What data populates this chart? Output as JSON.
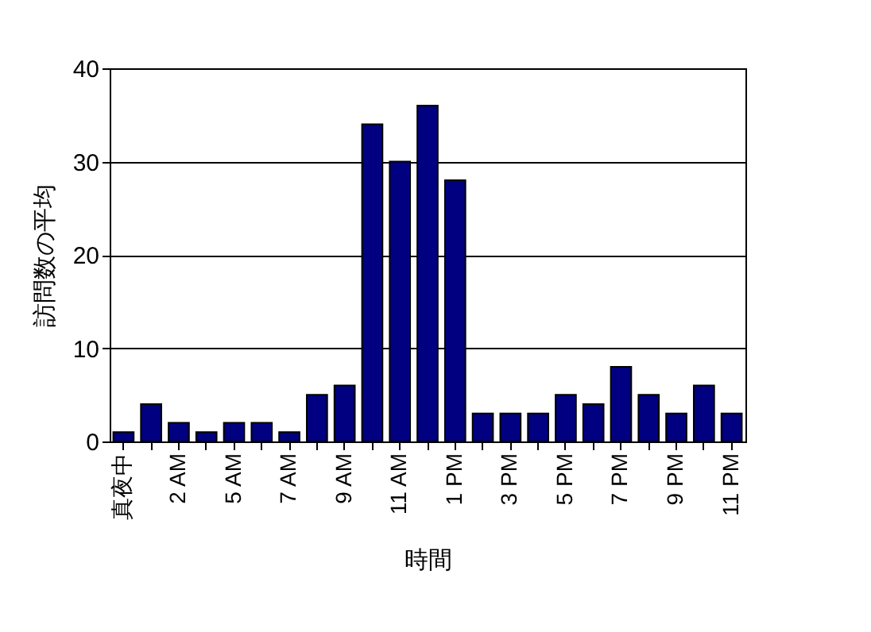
{
  "chart_data": {
    "type": "bar",
    "xlabel": "時間",
    "ylabel": "訪問数の平均",
    "categories": [
      "真夜中",
      null,
      "2 AM",
      null,
      "5 AM",
      null,
      "7 AM",
      null,
      "9 AM",
      null,
      "11 AM",
      null,
      "1 PM",
      null,
      "3 PM",
      null,
      "5 PM",
      null,
      "7 PM",
      null,
      "9 PM",
      null,
      "11 PM"
    ],
    "values": [
      1,
      4,
      2,
      1,
      2,
      2,
      1,
      5,
      6,
      34,
      30,
      36,
      28,
      3,
      3,
      3,
      5,
      4,
      8,
      5,
      3,
      6,
      3
    ],
    "color": "#000080",
    "ylim": [
      0,
      40
    ],
    "yticks": [
      0,
      10,
      20,
      30,
      40
    ],
    "grid": "y"
  }
}
